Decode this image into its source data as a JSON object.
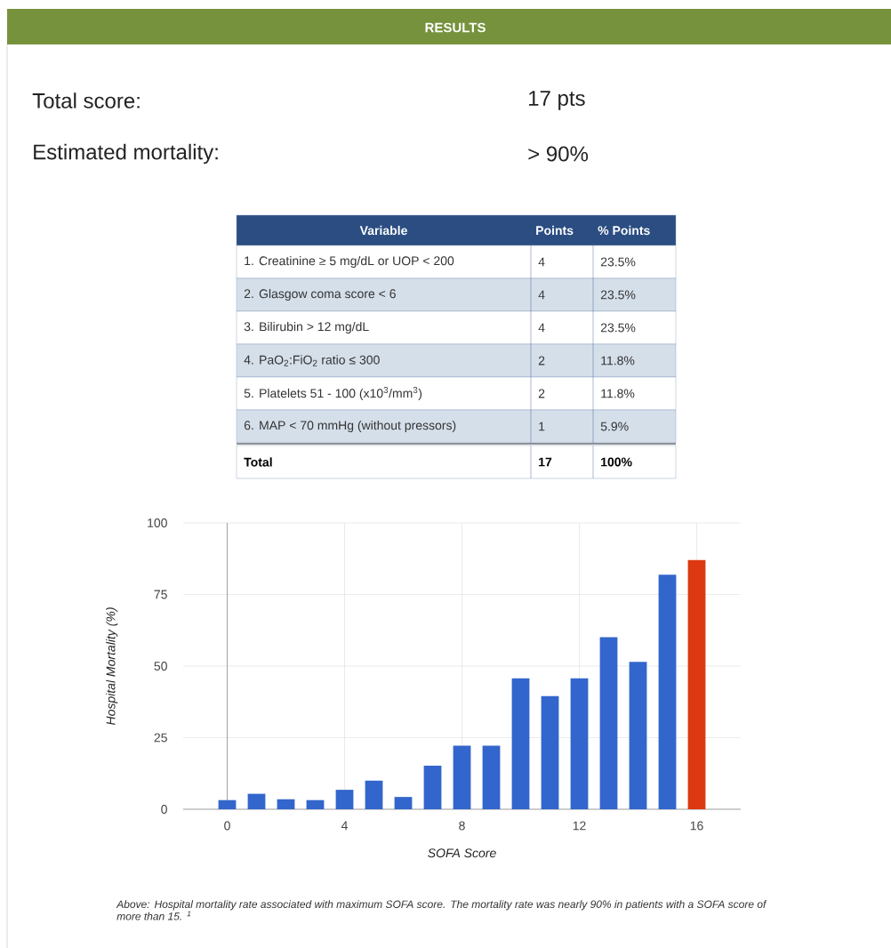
{
  "chart_data": [
    {
      "type": "other",
      "title": "RESULTS",
      "annotations": [
        "Total score:",
        "17 pts",
        "Estimated mortality:",
        "> 90%",
        "Variable",
        "Points",
        "% Points",
        "1.  Creatinine ≥ 5 mg/dL or UOP < 200",
        "4",
        "23.5%",
        "2.  Glasgow coma score < 6",
        "4",
        "23.5%",
        "3.  Bilirubin > 12 mg/dL",
        "4",
        "23.5%",
        "4.  PaO$_{2}$:FiO$_{2}$ ratio ≤ 300",
        "2",
        "11.8%",
        "5.  Platelets 51 - 100 (x10$^{3}$/mm$^{3}$)",
        "2",
        "11.8%",
        "6.  MAP < 70 mmHg (without pressors)",
        "1",
        "5.9%",
        "Total",
        "17",
        "100%"
      ]
    },
    {
      "type": "bar",
      "x": [
        0,
        1,
        2,
        3,
        4,
        5,
        6,
        7,
        8,
        9,
        10,
        11,
        12,
        13,
        14,
        15,
        16
      ],
      "values": [
        3.2,
        5.4,
        3.5,
        3.2,
        6.8,
        10,
        4.3,
        15.2,
        22.2,
        22.2,
        45.7,
        39.5,
        45.7,
        60.1,
        51.5,
        81.9,
        87
      ],
      "colors": [
        "#3366cc",
        "#3366cc",
        "#3366cc",
        "#3366cc",
        "#3366cc",
        "#3366cc",
        "#3366cc",
        "#3366cc",
        "#3366cc",
        "#3366cc",
        "#3366cc",
        "#3366cc",
        "#3366cc",
        "#3366cc",
        "#3366cc",
        "#3366cc",
        "#dc3912"
      ],
      "xlim": [
        -1.5,
        17.5
      ],
      "xticks": [
        0,
        4,
        8,
        12,
        16
      ],
      "ylim": [
        0,
        100
      ],
      "yticks": [
        0,
        25,
        50,
        75,
        100
      ],
      "grid": true,
      "xlabel": "SOFA Score",
      "ylabel": "Hospital Mortality (%)",
      "ref_lines": [
        {
          "axis": "x",
          "value": 0,
          "color": "#333333"
        }
      ],
      "annotations": [
        "Above: Hospital mortality rate associated with maximum SOFA score. The mortality rate was nearly 90% in patients with a SOFA score of more than 15. $^{1}$"
      ]
    }
  ]
}
